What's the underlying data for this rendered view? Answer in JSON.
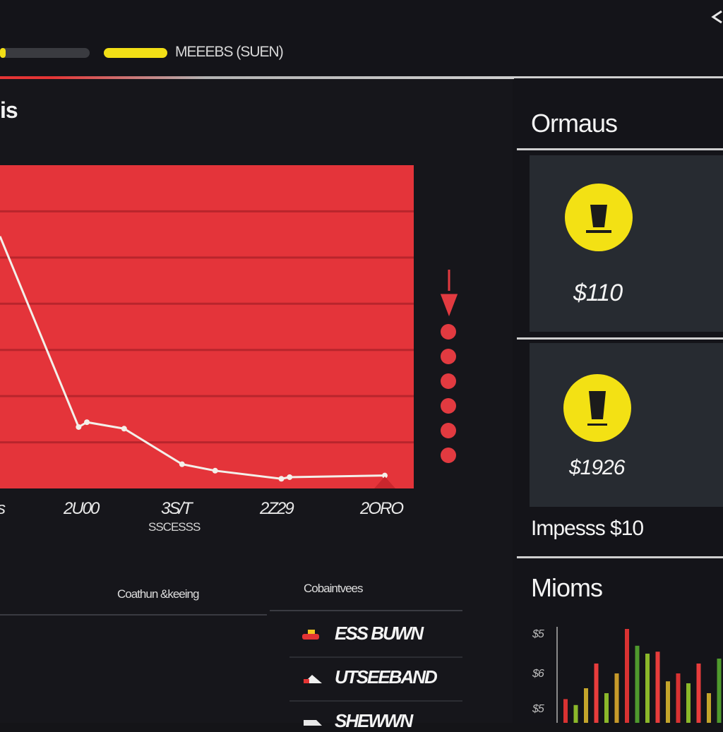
{
  "topbar": {
    "progress": 0.06,
    "meta_text": "MEEEBS (SUEN)",
    "corner_icon": "chevron-icon"
  },
  "main": {
    "title": "is",
    "table": {
      "left_header": "Coathun &keeing",
      "right_header": "Cobaintvees",
      "rows": [
        {
          "icon": "flag-icon",
          "label": "ESS BUWN"
        },
        {
          "icon": "arrow-icon",
          "label": "UTSEEBAND"
        },
        {
          "icon": "shoe-icon",
          "label": "SHEWWN"
        }
      ]
    }
  },
  "chart_data": {
    "type": "line",
    "title": "",
    "xlabel": "",
    "ylabel": "",
    "x_ticks": [
      "s",
      "2U00",
      "3S/T",
      "2Z29",
      "2ORO"
    ],
    "x_sub_label": "SSCESSS",
    "points": [
      {
        "x": 0.0,
        "y": 0.78
      },
      {
        "x": 0.19,
        "y": 0.19
      },
      {
        "x": 0.21,
        "y": 0.205
      },
      {
        "x": 0.3,
        "y": 0.185
      },
      {
        "x": 0.44,
        "y": 0.075
      },
      {
        "x": 0.52,
        "y": 0.055
      },
      {
        "x": 0.68,
        "y": 0.03
      },
      {
        "x": 0.7,
        "y": 0.035
      },
      {
        "x": 0.93,
        "y": 0.04
      }
    ],
    "ylim": [
      0,
      1
    ],
    "grid": true,
    "colors": {
      "plot_bg": "#e4343a",
      "line": "#f3f0ea",
      "grid": "#b8252c"
    },
    "indicator_dots": 6
  },
  "side": {
    "title1": "Ormaus",
    "card1": {
      "icon": "cup-icon",
      "value": "$110"
    },
    "card2": {
      "icon": "cup-icon",
      "value": "$1926"
    },
    "label": "Impesss $10",
    "title2": "Mioms",
    "mini_axis": [
      "$5",
      "$6",
      "$5"
    ],
    "mini_bars": [
      {
        "h": 0.24,
        "c": "#d93232"
      },
      {
        "h": 0.18,
        "c": "#8bb82a"
      },
      {
        "h": 0.35,
        "c": "#c4a52b"
      },
      {
        "h": 0.6,
        "c": "#e83c3c"
      },
      {
        "h": 0.3,
        "c": "#8bb82a"
      },
      {
        "h": 0.5,
        "c": "#c79a2a"
      },
      {
        "h": 0.95,
        "c": "#d93232"
      },
      {
        "h": 0.78,
        "c": "#4f9a2d"
      },
      {
        "h": 0.7,
        "c": "#8bb82a"
      },
      {
        "h": 0.72,
        "c": "#e83c3c"
      },
      {
        "h": 0.42,
        "c": "#c4a52b"
      },
      {
        "h": 0.5,
        "c": "#d93232"
      },
      {
        "h": 0.4,
        "c": "#8bb82a"
      },
      {
        "h": 0.6,
        "c": "#e83c3c"
      },
      {
        "h": 0.3,
        "c": "#c4a52b"
      },
      {
        "h": 0.65,
        "c": "#4f9a2d"
      }
    ]
  }
}
